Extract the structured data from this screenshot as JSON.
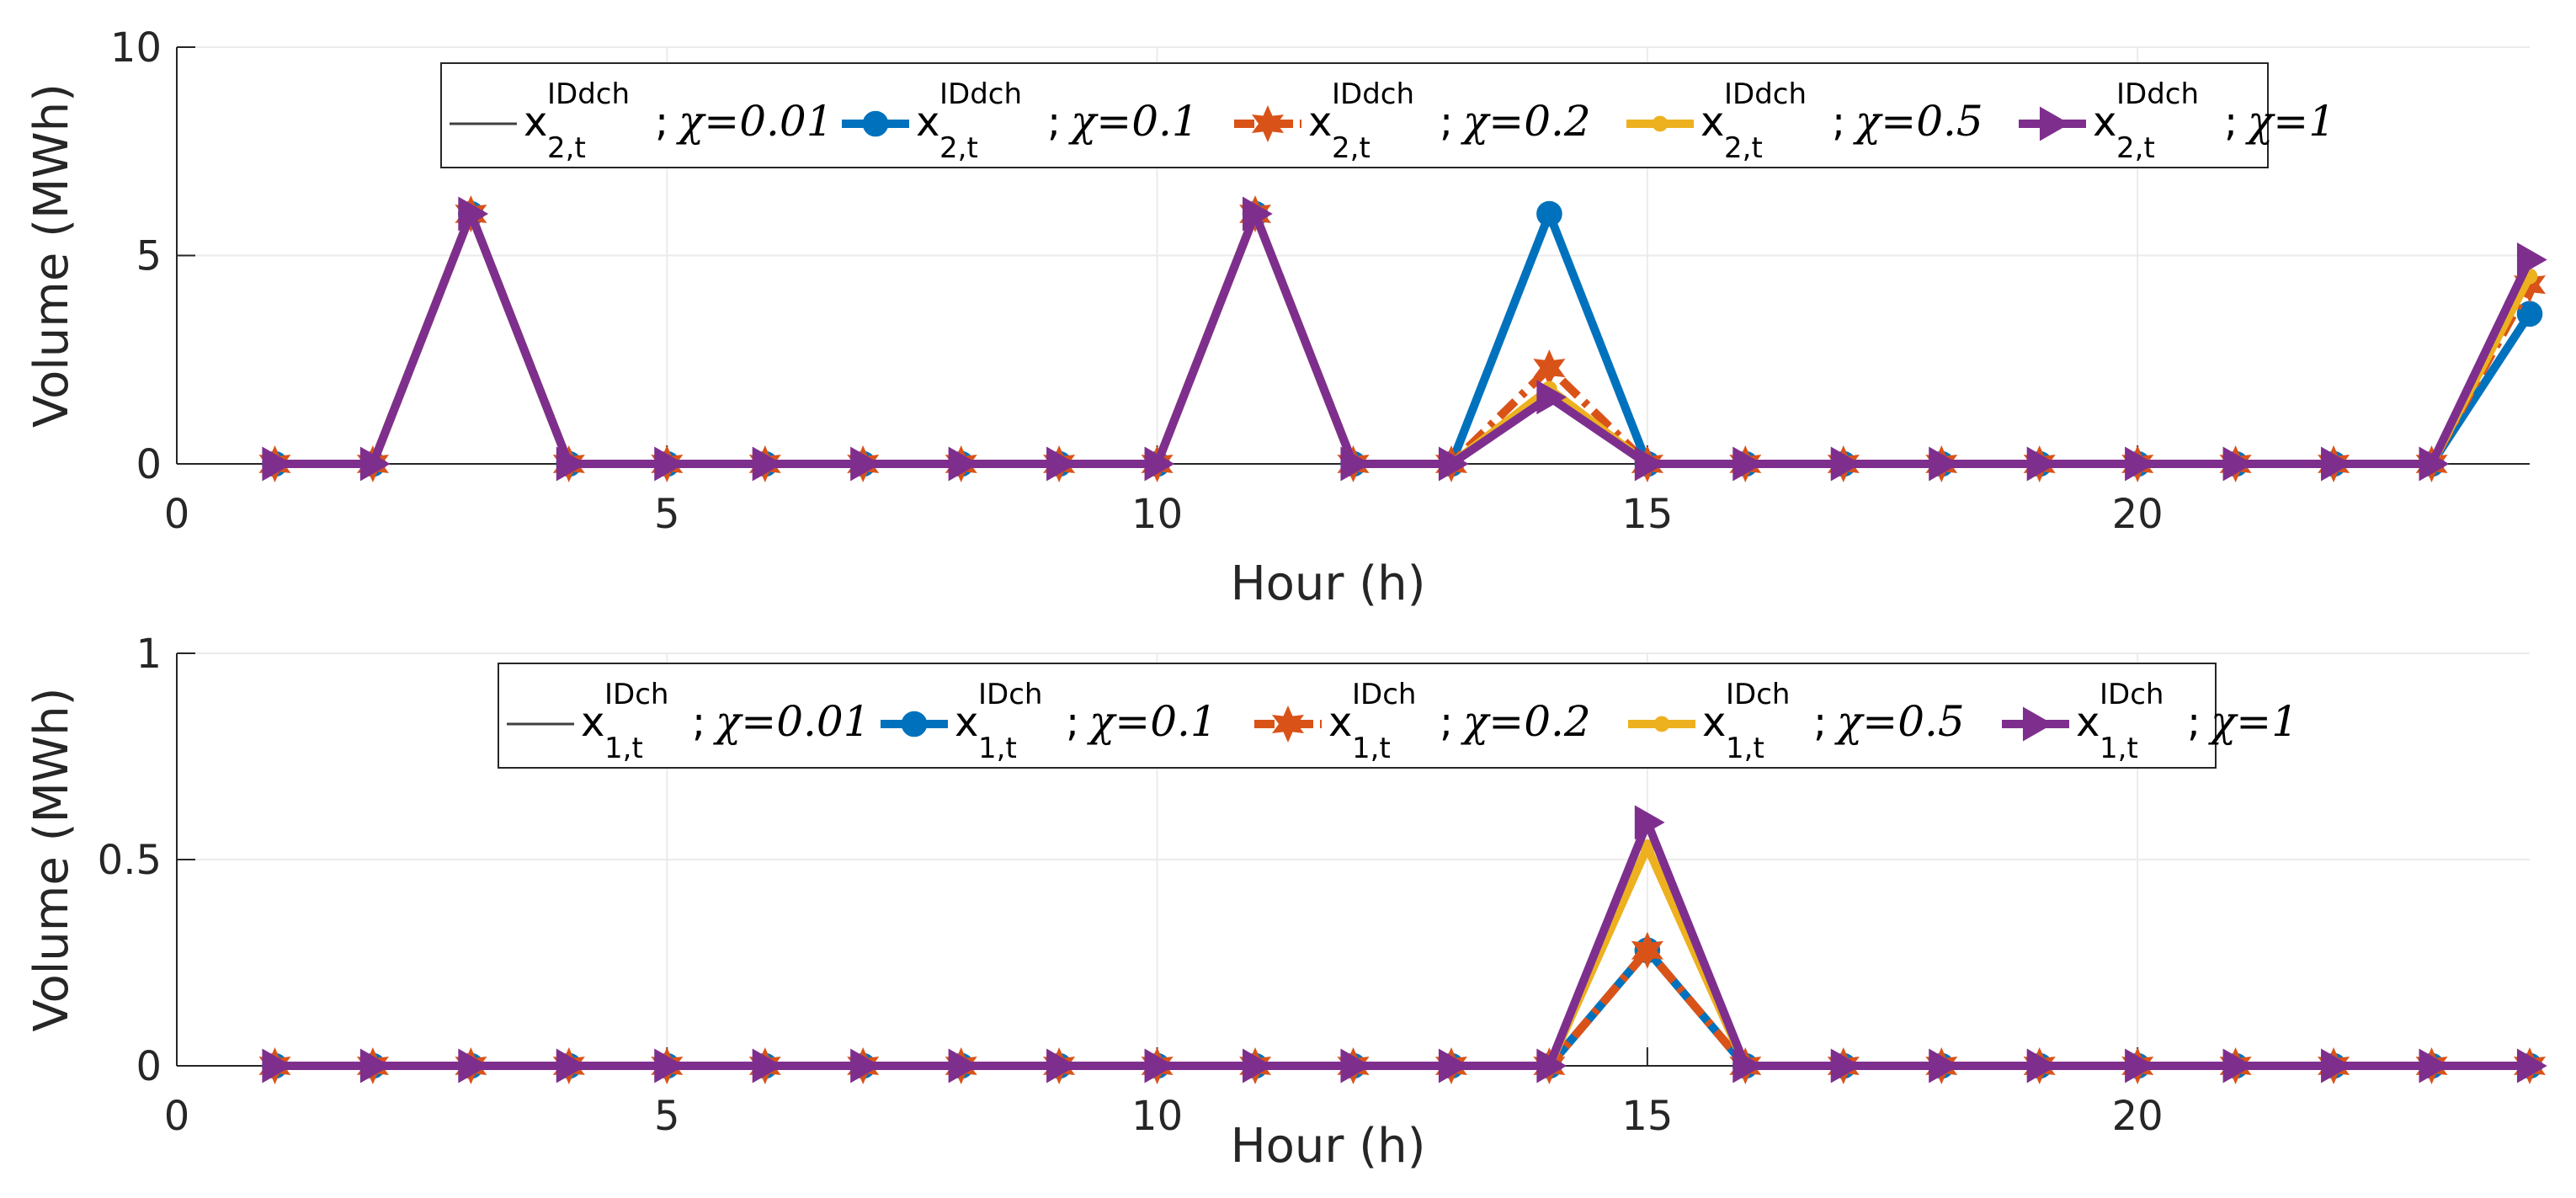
{
  "chart_data": [
    {
      "type": "line",
      "xlabel": "Hour (h)",
      "ylabel": "Volume (MWh)",
      "xlim": [
        0,
        24
      ],
      "ylim": [
        0,
        10
      ],
      "xticks": [
        0,
        5,
        10,
        15,
        20
      ],
      "yticks": [
        0,
        5,
        10
      ],
      "grid": true,
      "legend_position": "top",
      "x": [
        1,
        2,
        3,
        4,
        5,
        6,
        7,
        8,
        9,
        10,
        11,
        12,
        13,
        14,
        15,
        16,
        17,
        18,
        19,
        20,
        21,
        22,
        23,
        24
      ],
      "series": [
        {
          "name": "χ=0.01",
          "base": "x",
          "sup": "IDdch",
          "sub": "2,t",
          "chi_label": "χ=0.01",
          "color": "#404040",
          "marker": "none",
          "values": [
            0,
            0,
            6,
            0,
            0,
            0,
            0,
            0,
            0,
            0,
            6,
            0,
            0,
            6,
            0,
            0,
            0,
            0,
            0,
            0,
            0,
            0,
            0,
            3.6
          ]
        },
        {
          "name": "χ=0.1",
          "base": "x",
          "sup": "IDdch",
          "sub": "2,t",
          "chi_label": "χ=0.1",
          "color": "#0072BD",
          "marker": "circle",
          "values": [
            0,
            0,
            6,
            0,
            0,
            0,
            0,
            0,
            0,
            0,
            6,
            0,
            0,
            6,
            0,
            0,
            0,
            0,
            0,
            0,
            0,
            0,
            0,
            3.6
          ]
        },
        {
          "name": "χ=0.2",
          "base": "x",
          "sup": "IDdch",
          "sub": "2,t",
          "chi_label": "χ=0.2",
          "color": "#D95319",
          "marker": "hexagram",
          "values": [
            0,
            0,
            6,
            0,
            0,
            0,
            0,
            0,
            0,
            0,
            6,
            0,
            0,
            2.3,
            0,
            0,
            0,
            0,
            0,
            0,
            0,
            0,
            0,
            4.3
          ]
        },
        {
          "name": "χ=0.5",
          "base": "x",
          "sup": "IDdch",
          "sub": "2,t",
          "chi_label": "χ=0.5",
          "color": "#EDB120",
          "marker": "point",
          "values": [
            0,
            0,
            6,
            0,
            0,
            0,
            0,
            0,
            0,
            0,
            6,
            0,
            0,
            1.8,
            0,
            0,
            0,
            0,
            0,
            0,
            0,
            0,
            0,
            4.5
          ]
        },
        {
          "name": "χ=1",
          "base": "x",
          "sup": "IDdch",
          "sub": "2,t",
          "chi_label": "χ=1",
          "color": "#7E2F8E",
          "marker": "triangle-right",
          "values": [
            0,
            0,
            6,
            0,
            0,
            0,
            0,
            0,
            0,
            0,
            6,
            0,
            0,
            1.6,
            0,
            0,
            0,
            0,
            0,
            0,
            0,
            0,
            0,
            4.9
          ]
        }
      ]
    },
    {
      "type": "line",
      "xlabel": "Hour (h)",
      "ylabel": "Volume (MWh)",
      "xlim": [
        0,
        24
      ],
      "ylim": [
        0,
        1
      ],
      "xticks": [
        0,
        5,
        10,
        15,
        20
      ],
      "yticks": [
        0,
        0.5,
        1
      ],
      "grid": true,
      "legend_position": "top",
      "x": [
        1,
        2,
        3,
        4,
        5,
        6,
        7,
        8,
        9,
        10,
        11,
        12,
        13,
        14,
        15,
        16,
        17,
        18,
        19,
        20,
        21,
        22,
        23,
        24
      ],
      "series": [
        {
          "name": "χ=0.01",
          "base": "x",
          "sup": "IDch",
          "sub": "1,t",
          "chi_label": "χ=0.01",
          "color": "#404040",
          "marker": "none",
          "values": [
            0,
            0,
            0,
            0,
            0,
            0,
            0,
            0,
            0,
            0,
            0,
            0,
            0,
            0,
            0.28,
            0,
            0,
            0,
            0,
            0,
            0,
            0,
            0,
            0
          ]
        },
        {
          "name": "χ=0.1",
          "base": "x",
          "sup": "IDch",
          "sub": "1,t",
          "chi_label": "χ=0.1",
          "color": "#0072BD",
          "marker": "circle",
          "values": [
            0,
            0,
            0,
            0,
            0,
            0,
            0,
            0,
            0,
            0,
            0,
            0,
            0,
            0,
            0.28,
            0,
            0,
            0,
            0,
            0,
            0,
            0,
            0,
            0
          ]
        },
        {
          "name": "χ=0.2",
          "base": "x",
          "sup": "IDch",
          "sub": "1,t",
          "chi_label": "χ=0.2",
          "color": "#D95319",
          "marker": "hexagram",
          "values": [
            0,
            0,
            0,
            0,
            0,
            0,
            0,
            0,
            0,
            0,
            0,
            0,
            0,
            0,
            0.28,
            0,
            0,
            0,
            0,
            0,
            0,
            0,
            0,
            0
          ]
        },
        {
          "name": "χ=0.5",
          "base": "x",
          "sup": "IDch",
          "sub": "1,t",
          "chi_label": "χ=0.5",
          "color": "#EDB120",
          "marker": "point",
          "values": [
            0,
            0,
            0,
            0,
            0,
            0,
            0,
            0,
            0,
            0,
            0,
            0,
            0,
            0,
            0.53,
            0,
            0,
            0,
            0,
            0,
            0,
            0,
            0,
            0
          ]
        },
        {
          "name": "χ=1",
          "base": "x",
          "sup": "IDch",
          "sub": "1,t",
          "chi_label": "χ=1",
          "color": "#7E2F8E",
          "marker": "triangle-right",
          "values": [
            0,
            0,
            0,
            0,
            0,
            0,
            0,
            0,
            0,
            0,
            0,
            0,
            0,
            0,
            0.59,
            0,
            0,
            0,
            0,
            0,
            0,
            0,
            0,
            0
          ]
        }
      ]
    }
  ]
}
